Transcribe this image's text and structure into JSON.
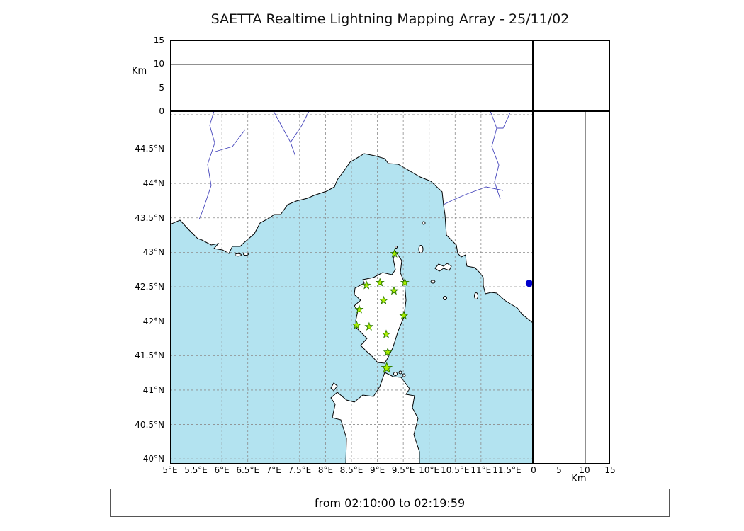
{
  "title": "SAETTA Realtime Lightning Mapping Array - 25/11/02",
  "status_text": "from 02:10:00 to 02:19:59",
  "axes": {
    "altitude_left": {
      "unit_label": "Km",
      "tick_labels": [
        "0",
        "5",
        "10",
        "15"
      ],
      "tick_values": [
        0,
        5,
        10,
        15
      ]
    },
    "latitude": {
      "tick_labels": [
        "44.5°N",
        "44°N",
        "43.5°N",
        "43°N",
        "42.5°N",
        "42°N",
        "41.5°N",
        "41°N",
        "40.5°N",
        "40°N"
      ],
      "tick_values": [
        44.5,
        44,
        43.5,
        43,
        42.5,
        42,
        41.5,
        41,
        40.5,
        40
      ]
    },
    "longitude": {
      "tick_labels": [
        "5°E",
        "5.5°E",
        "6°E",
        "6.5°E",
        "7°E",
        "7.5°E",
        "8°E",
        "8.5°E",
        "9°E",
        "9.5°E",
        "10°E",
        "10.5°E",
        "11°E",
        "11.5°E"
      ],
      "tick_values": [
        5,
        5.5,
        6,
        6.5,
        7,
        7.5,
        8,
        8.5,
        9,
        9.5,
        10,
        10.5,
        11,
        11.5
      ]
    },
    "km_bottom": {
      "unit_label": "Km",
      "tick_labels": [
        "0",
        "5",
        "10",
        "15"
      ],
      "tick_values": [
        0,
        5,
        10,
        15
      ]
    }
  },
  "chart_data": {
    "type": "scatter",
    "title": "SAETTA Realtime Lightning Mapping Array - 25/11/02",
    "time_window": {
      "from": "02:10:00",
      "to": "02:19:59"
    },
    "map_bounds": {
      "lon_min": 5,
      "lon_max": 12,
      "lat_min": 39.93,
      "lat_max": 45.05
    },
    "grid_step_deg": 0.5,
    "grid": "dashed",
    "altitude_panel_range_km": [
      0,
      15
    ],
    "altitude_gridlines_km": [
      5,
      10
    ],
    "stations": [
      {
        "lon": 9.33,
        "lat": 42.98
      },
      {
        "lon": 8.79,
        "lat": 42.52
      },
      {
        "lon": 9.05,
        "lat": 42.56
      },
      {
        "lon": 9.32,
        "lat": 42.44
      },
      {
        "lon": 9.53,
        "lat": 42.56
      },
      {
        "lon": 9.12,
        "lat": 42.3
      },
      {
        "lon": 8.65,
        "lat": 42.17
      },
      {
        "lon": 9.51,
        "lat": 42.08
      },
      {
        "lon": 8.6,
        "lat": 41.94
      },
      {
        "lon": 8.84,
        "lat": 41.92
      },
      {
        "lon": 9.17,
        "lat": 41.81
      },
      {
        "lon": 9.2,
        "lat": 41.55
      },
      {
        "lon": 9.18,
        "lat": 41.32,
        "size": "large"
      }
    ],
    "highlight_point": {
      "lon": 11.93,
      "lat": 42.55
    },
    "lightning_sources": []
  },
  "colors": {
    "sea": "#b3e3f0",
    "land": "#ffffff",
    "coast": "#000000",
    "river": "#4444bb",
    "grid": "#8c8c8c",
    "star_fill": "#aaee00",
    "star_stroke": "#2d7a00",
    "dot": "#0000cc"
  }
}
